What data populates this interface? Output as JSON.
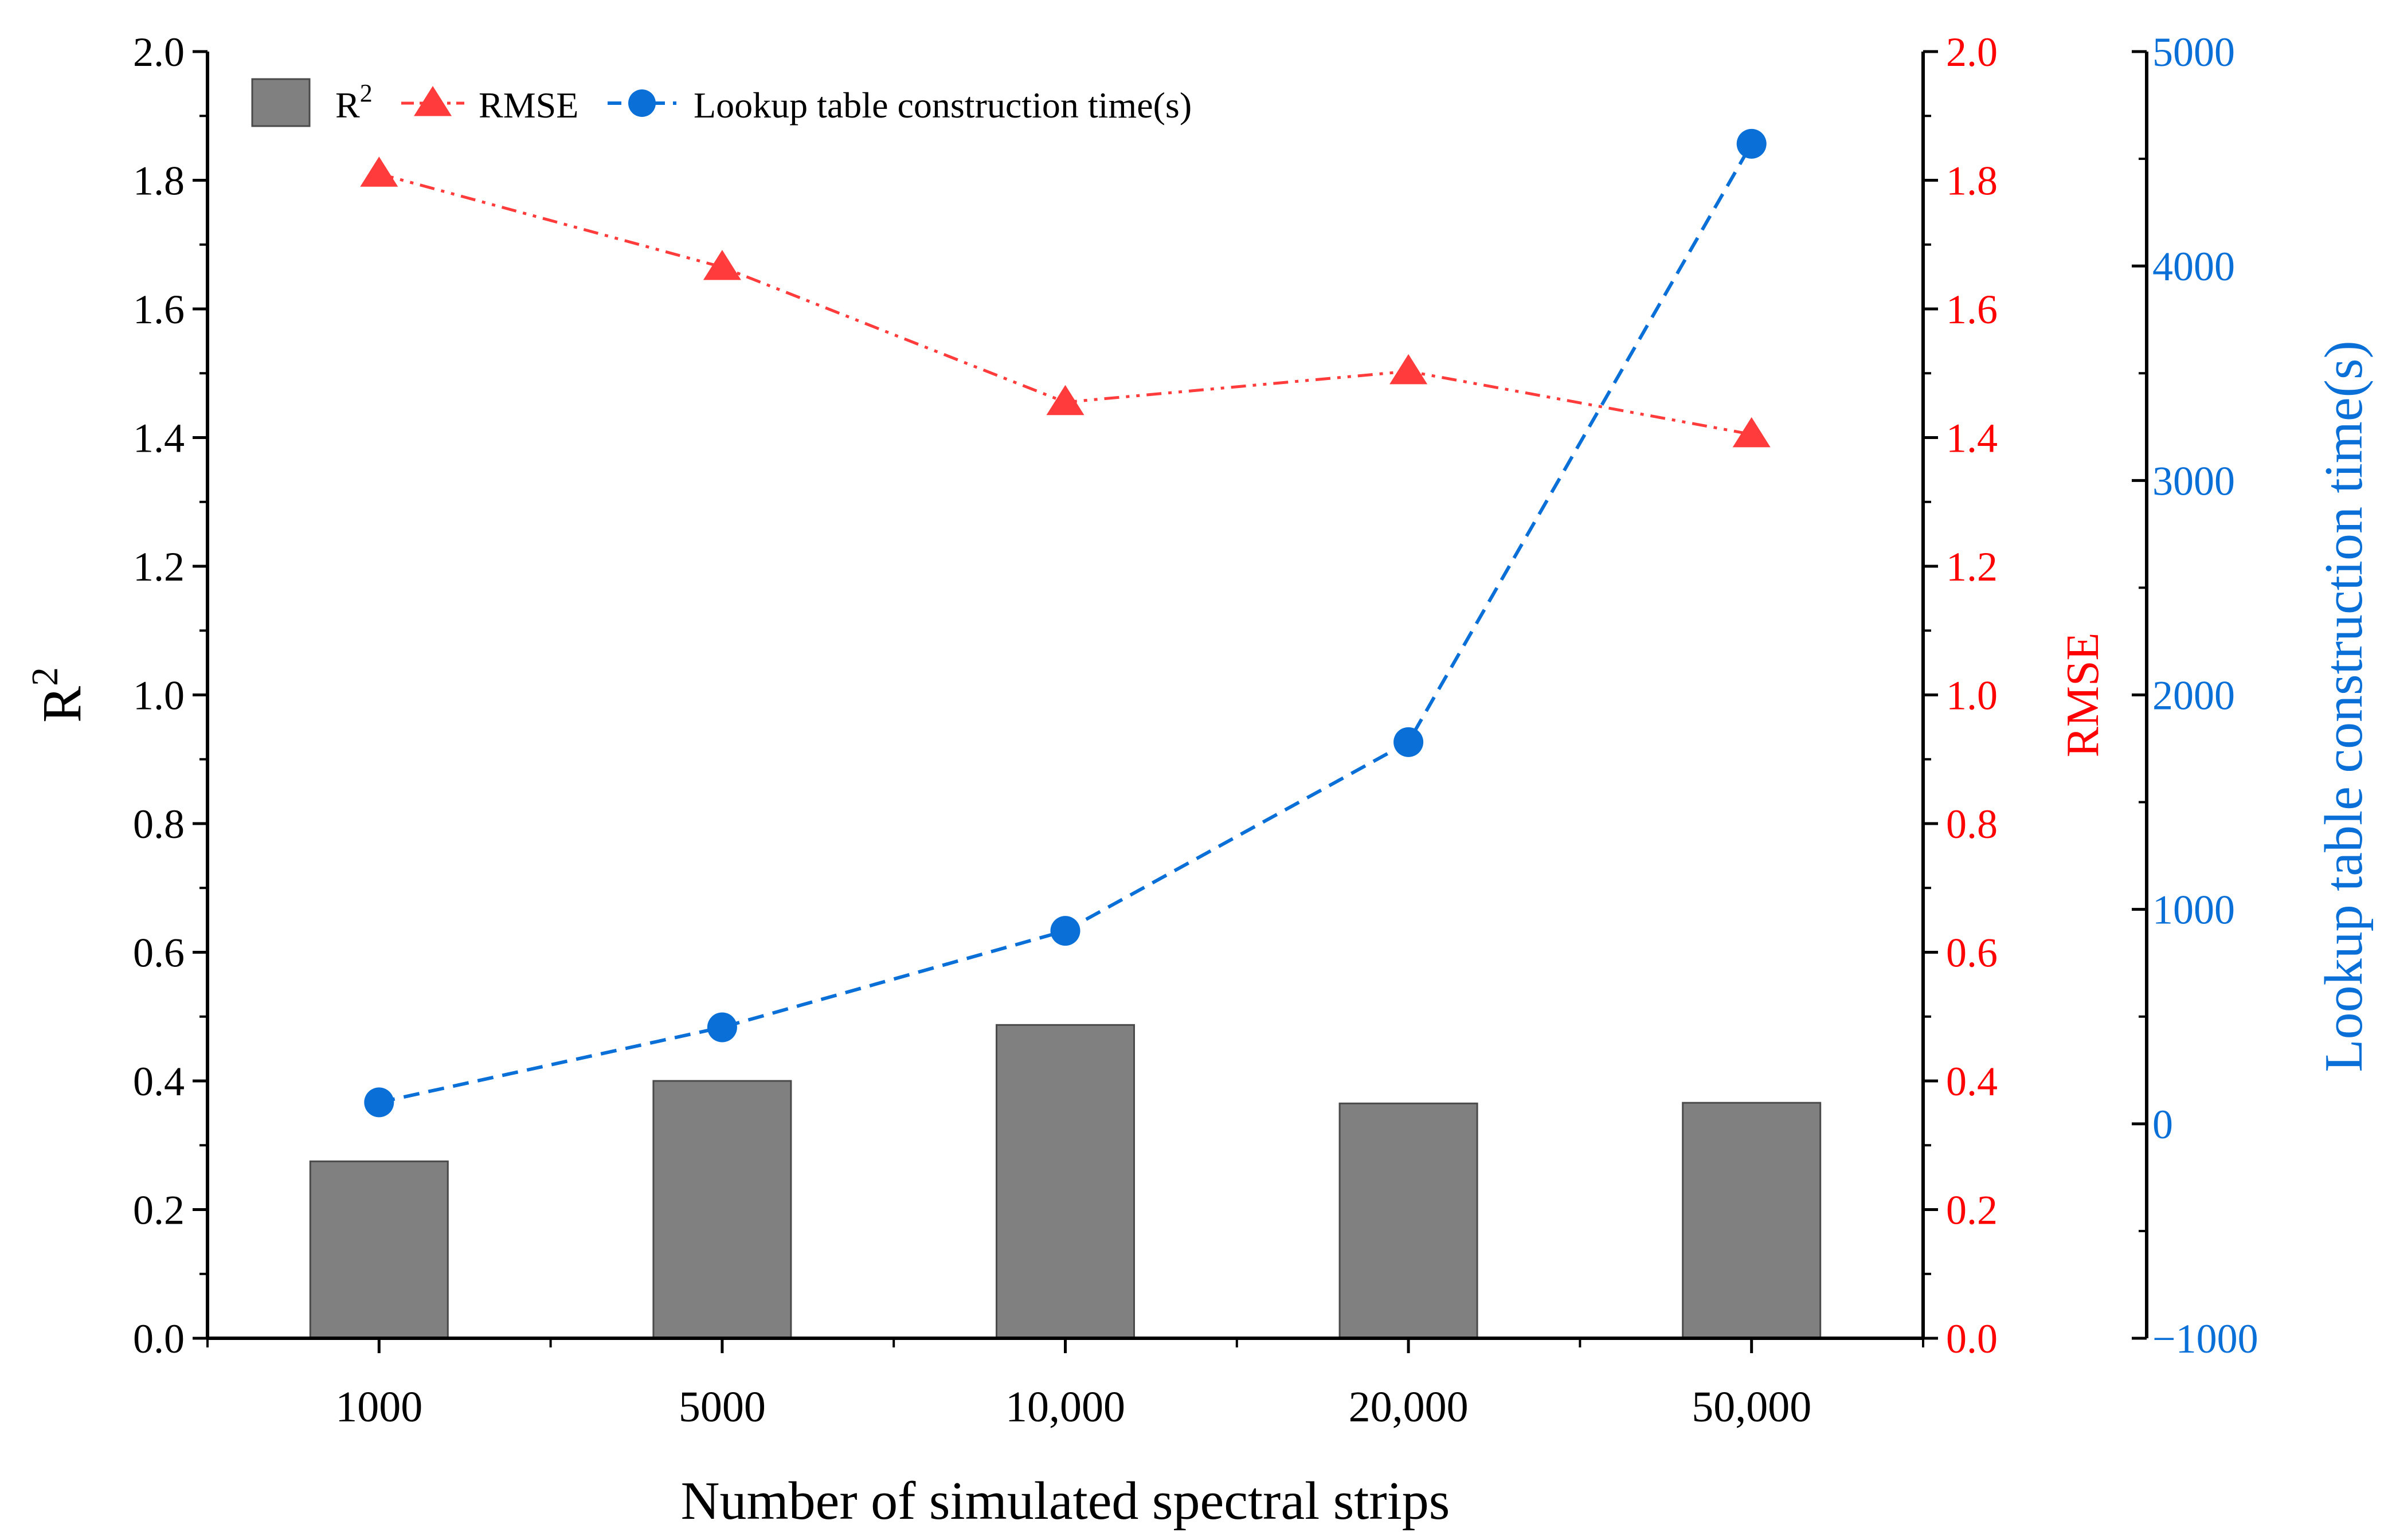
{
  "chart_data": {
    "type": "bar+line",
    "categories": [
      "1000",
      "5000",
      "10,000",
      "20,000",
      "50,000"
    ],
    "xlabel": "Number of simulated spectral strips",
    "axes": {
      "left": {
        "label": "R",
        "label_sup": "2",
        "min": 0,
        "max": 2.0,
        "step": 0.2,
        "ticks": [
          "0.0",
          "0.2",
          "0.4",
          "0.6",
          "0.8",
          "1.0",
          "1.2",
          "1.4",
          "1.6",
          "1.8",
          "2.0"
        ]
      },
      "right1": {
        "label": "RMSE",
        "min": 0,
        "max": 2.0,
        "step": 0.2,
        "ticks": [
          "0.0",
          "0.2",
          "0.4",
          "0.6",
          "0.8",
          "1.0",
          "1.2",
          "1.4",
          "1.6",
          "1.8",
          "2.0"
        ]
      },
      "right2": {
        "label": "Lookup table construction time(s)",
        "min": -1000,
        "max": 5000,
        "step": 1000,
        "ticks": [
          "−1000",
          "0",
          "1000",
          "2000",
          "3000",
          "4000",
          "5000"
        ]
      }
    },
    "series": [
      {
        "name": "R",
        "name_sup": "2",
        "type": "bar",
        "axis": "left",
        "color": "#808080",
        "values": [
          0.275,
          0.4,
          0.487,
          0.365,
          0.366
        ]
      },
      {
        "name": "RMSE",
        "type": "line",
        "marker": "triangle",
        "dash": "dash-dot-dot",
        "axis": "right1",
        "color": "#ff3b3b",
        "values": [
          1.81,
          1.665,
          1.455,
          1.503,
          1.405
        ]
      },
      {
        "name": "Lookup table construction time(s)",
        "type": "line",
        "marker": "circle",
        "dash": "dash",
        "axis": "right2",
        "color": "#0a6fd6",
        "values": [
          100,
          450,
          900,
          1780,
          4570
        ]
      }
    ],
    "colors": {
      "rmse_axis": "#ff0000",
      "time_axis": "#0a6fd6",
      "axis": "#000000"
    }
  }
}
